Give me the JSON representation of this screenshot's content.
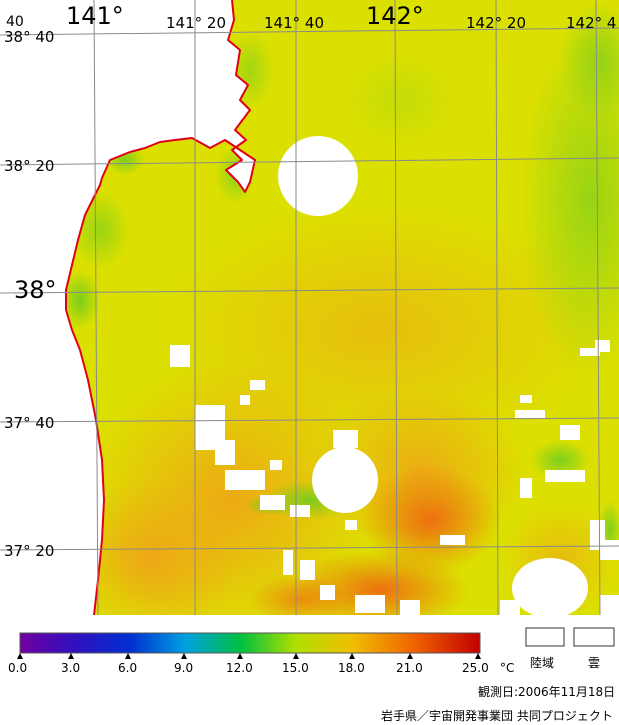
{
  "map": {
    "lon_labels": [
      "141°",
      "141° 20",
      "141° 40",
      "142°",
      "142° 20",
      "142° 4"
    ],
    "lat_labels": [
      "38° 40",
      "38° 20",
      "38°",
      "37° 40",
      "37° 20"
    ],
    "corner_label": "40"
  },
  "legend": {
    "ticks": [
      "0.0",
      "3.0",
      "6.0",
      "9.0",
      "12.0",
      "15.0",
      "18.0",
      "21.0",
      "25.0"
    ],
    "unit": "°C",
    "land_label": "陸域",
    "cloud_label": "雲"
  },
  "footer": {
    "observation_date": "観測日:2006年11月18日",
    "credit": "岩手県／宇宙開発事業団 共同プロジェクト"
  },
  "colors": {
    "coast": "#e0001a",
    "grid": "#8a8a8a",
    "sea_base": "#d8e000",
    "sea_warm": "#f3b010",
    "sea_hot": "#f07a10",
    "sea_green": "#80d020"
  }
}
